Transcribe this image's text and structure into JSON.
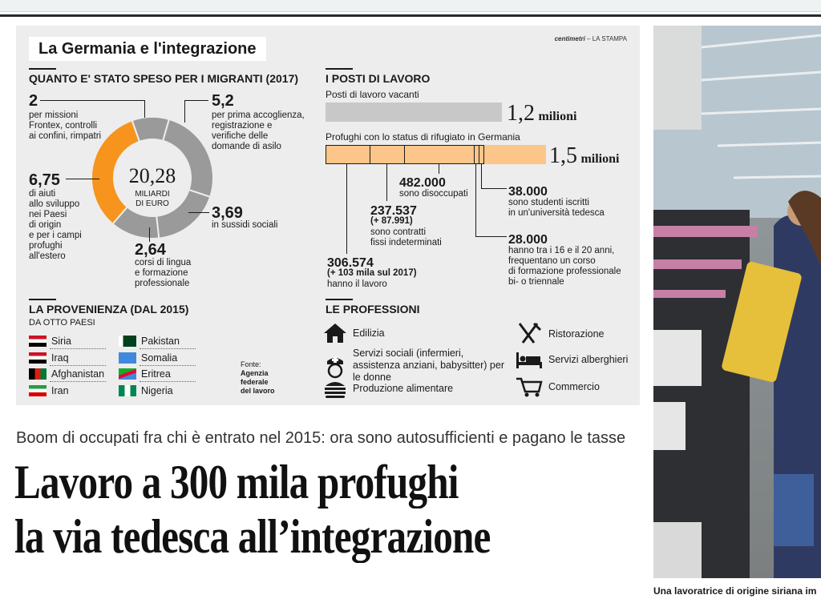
{
  "infographic": {
    "title": "La Germania e l'integrazione",
    "credit_brand": "centimetri",
    "credit_paper": "LA STAMPA",
    "spending": {
      "section_title": "QUANTO E' STATO SPESO PER I MIGRANTI (2017)",
      "total_value": "20,28",
      "total_unit_line1": "MILIARDI",
      "total_unit_line2": "DI EURO",
      "items": [
        {
          "value": "2",
          "desc": [
            "per missioni",
            "Frontex, controlli",
            "ai confini, rimpatri"
          ]
        },
        {
          "value": "5,2",
          "desc": [
            "per prima accoglienza,",
            "registrazione e",
            "verifiche delle",
            "domande di asilo"
          ]
        },
        {
          "value": "6,75",
          "desc": [
            "di aiuti",
            "allo sviluppo",
            "nei Paesi",
            "di origin",
            "e per i campi",
            "profughi",
            "all'estero"
          ]
        },
        {
          "value": "3,69",
          "desc": [
            "in sussidi sociali"
          ]
        },
        {
          "value": "2,64",
          "desc": [
            "corsi di lingua",
            "e formazione",
            "professionale"
          ]
        }
      ]
    },
    "jobs": {
      "section_title": "I POSTI DI LAVORO",
      "vacancies_label": "Posti di lavoro vacanti",
      "vacancies_value": "1,2",
      "vacancies_unit": "milioni",
      "refugees_label": "Profughi con lo status di rifugiato in Germania",
      "refugees_value": "1,5",
      "refugees_unit": "milioni",
      "breakdown": [
        {
          "value": "482.000",
          "desc": [
            "sono disoccupati"
          ]
        },
        {
          "value": "237.537",
          "extra": "(+ 87.991)",
          "desc": [
            "sono contratti",
            "fissi indeterminati"
          ]
        },
        {
          "value": "306.574",
          "extra": "(+ 103 mila sul 2017)",
          "desc": [
            "hanno il lavoro"
          ]
        },
        {
          "value": "38.000",
          "desc": [
            "sono studenti iscritti",
            "in un'università tedesca"
          ]
        },
        {
          "value": "28.000",
          "desc": [
            "hanno tra i 16 e il 20 anni,",
            "frequentano un corso",
            "di formazione professionale",
            "bi- o triennale"
          ]
        }
      ]
    },
    "origin": {
      "section_title": "LA PROVENIENZA (DAL 2015)",
      "subtitle": "DA OTTO PAESI",
      "countries_left": [
        "Siria",
        "Iraq",
        "Afghanistan",
        "Iran"
      ],
      "countries_right": [
        "Pakistan",
        "Somalia",
        "Eritrea",
        "Nigeria"
      ],
      "source_label": "Fonte:",
      "source_name": [
        "Agenzia",
        "federale",
        "del lavoro"
      ]
    },
    "professions": {
      "section_title": "LE PROFESSIONI",
      "items": [
        {
          "label": "Edilizia",
          "icon": "house-icon"
        },
        {
          "label": "Servizi sociali (infermieri, assistenza anziani, babysitter) per le donne",
          "icon": "nurse-icon"
        },
        {
          "label": "Produzione alimentare",
          "icon": "burger-icon"
        },
        {
          "label": "Ristorazione",
          "icon": "cutlery-icon"
        },
        {
          "label": "Servizi alberghieri",
          "icon": "hotel-bed-icon"
        },
        {
          "label": "Commercio",
          "icon": "cart-icon"
        }
      ]
    }
  },
  "article": {
    "subheadline": "Boom di occupati fra chi è entrato nel 2015: ora sono autosufficienti e pagano le tasse",
    "headline_line1": "Lavoro a 300 mila profughi",
    "headline_line2": "la via tedesca all’integrazione",
    "photo_caption": "Una lavoratrice di origine siriana im"
  },
  "chart_data": [
    {
      "type": "pie",
      "title": "QUANTO E' STATO SPESO PER I MIGRANTI (2017)",
      "categories": [
        "per missioni Frontex, controlli ai confini, rimpatri",
        "per prima accoglienza, registrazione e verifiche delle domande di asilo",
        "in sussidi sociali",
        "corsi di lingua e formazione professionale",
        "di aiuti allo sviluppo nei Paesi di origin e per i campi profughi all'estero"
      ],
      "values": [
        2,
        5.2,
        3.69,
        2.64,
        6.75
      ],
      "total": 20.28,
      "unit": "MILIARDI DI EURO",
      "colors": [
        "#9a9a9a",
        "#9a9a9a",
        "#9a9a9a",
        "#9a9a9a",
        "#f7941d"
      ]
    },
    {
      "type": "bar",
      "title": "I POSTI DI LAVORO",
      "categories": [
        "Posti di lavoro vacanti",
        "Profughi con lo status di rifugiato in Germania"
      ],
      "values": [
        1.2,
        1.5
      ],
      "unit": "milioni",
      "colors": [
        "#c8c8c8",
        "#fcc58a"
      ]
    }
  ],
  "colors": {
    "orange": "#f7941d",
    "gray": "#9a9a9a",
    "panel": "#ededed",
    "bar_peach": "#fcc58a"
  }
}
